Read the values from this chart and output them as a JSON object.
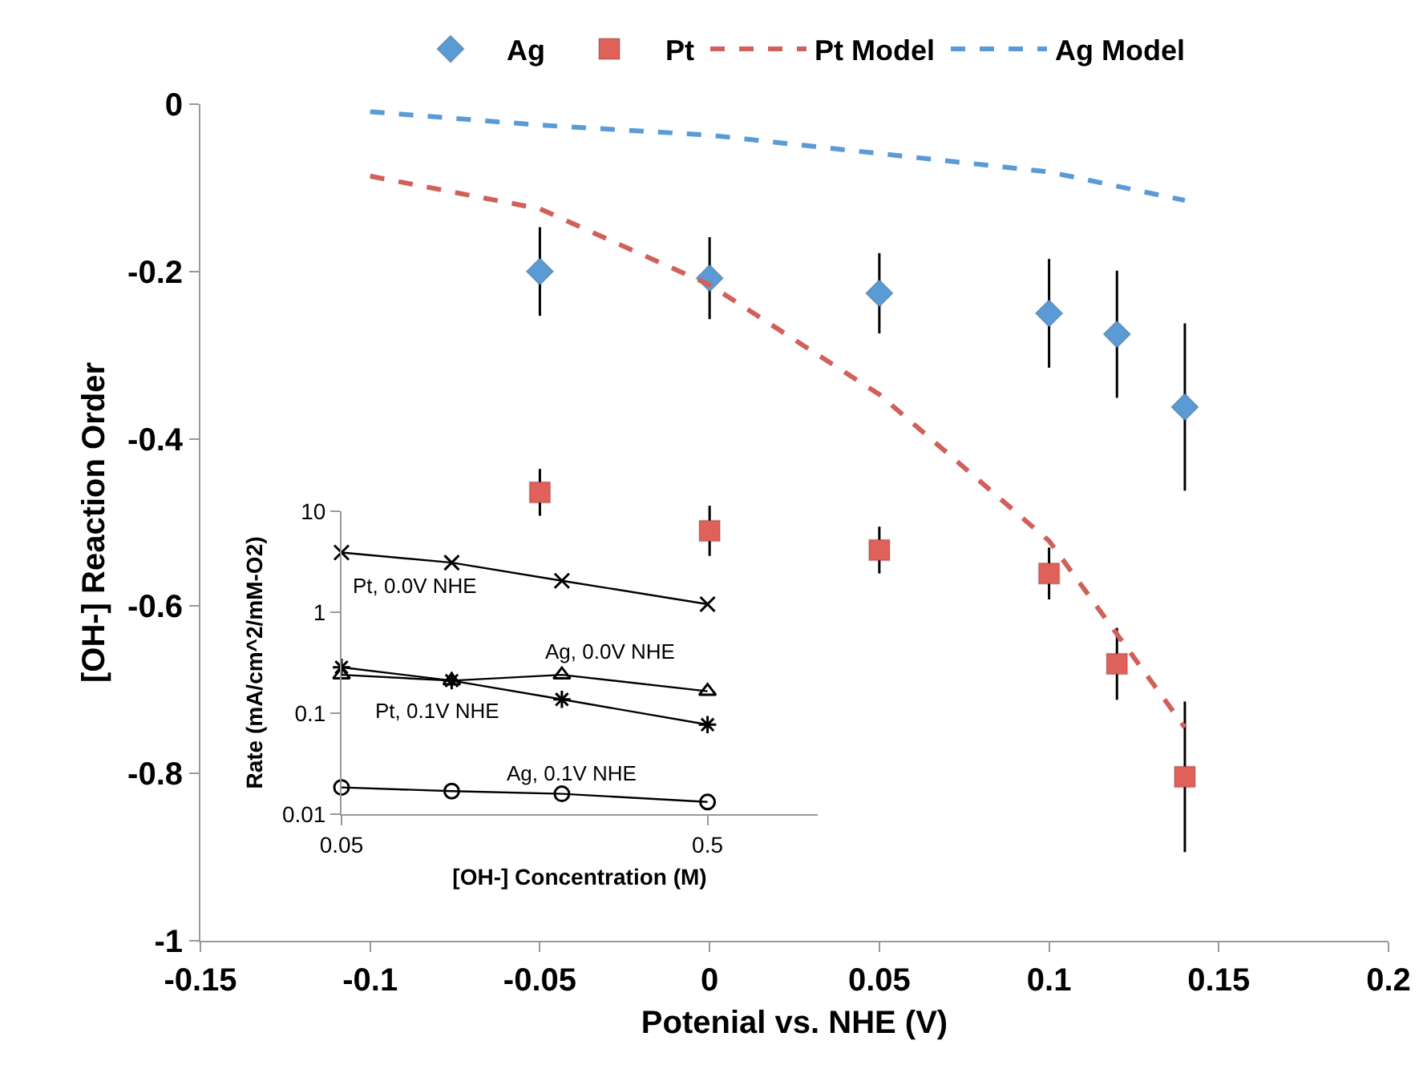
{
  "chart_data": [
    {
      "type": "scatter",
      "xlabel": "Potenial vs. NHE (V)",
      "ylabel": "[OH-] Reaction Order",
      "x": [
        -0.05,
        0,
        0.05,
        0.1,
        0.12,
        0.14
      ],
      "xlim": [
        -0.15,
        0.2
      ],
      "xticks": [
        -0.15,
        -0.1,
        -0.05,
        0,
        0.05,
        0.1,
        0.15,
        0.2
      ],
      "ylim": [
        -1,
        0
      ],
      "yticks": [
        -1,
        -0.8,
        -0.6,
        -0.4,
        -0.2,
        0
      ],
      "legend": "top",
      "series": [
        {
          "name": "Ag",
          "marker": "diamond",
          "color": "#5b9bd5",
          "values": [
            -0.2,
            -0.208,
            -0.226,
            -0.25,
            -0.275,
            -0.362
          ],
          "errors": [
            0.053,
            0.049,
            0.048,
            0.065,
            0.076,
            0.1
          ]
        },
        {
          "name": "Pt",
          "marker": "square",
          "color": "#e0605a",
          "values": [
            -0.464,
            -0.51,
            -0.533,
            -0.561,
            -0.669,
            -0.804
          ],
          "errors": [
            0.028,
            0.03,
            0.028,
            0.031,
            0.043,
            0.09
          ]
        },
        {
          "name": "Pt Model",
          "type": "line",
          "line_style": "dashed",
          "color": "#d0605a",
          "x": [
            -0.1,
            -0.05,
            0,
            0.05,
            0.1,
            0.14
          ],
          "values": [
            -0.086,
            -0.125,
            -0.216,
            -0.347,
            -0.522,
            -0.745
          ]
        },
        {
          "name": "Ag Model",
          "type": "line",
          "line_style": "dashed",
          "color": "#5b9bd5",
          "x": [
            -0.1,
            -0.05,
            0,
            0.05,
            0.1,
            0.14
          ],
          "values": [
            -0.009,
            -0.025,
            -0.037,
            -0.059,
            -0.081,
            -0.115
          ]
        }
      ]
    },
    {
      "type": "line",
      "xlabel": "[OH-] Concentration (M)",
      "ylabel": "Rate (mA/cm^2/mM-O2)",
      "x": [
        0.05,
        0.1,
        0.2,
        0.5
      ],
      "log": "xy",
      "xlim": [
        0.05,
        1
      ],
      "xticks": [
        0.05,
        0.5
      ],
      "ylim": [
        0.01,
        10
      ],
      "yticks": [
        0.01,
        0.1,
        1,
        10
      ],
      "series": [
        {
          "name": "Pt, 0.0V NHE",
          "marker": "cross",
          "color": "#000000",
          "values": [
            3.9,
            3.1,
            2.05,
            1.2
          ]
        },
        {
          "name": "Ag, 0.0V NHE",
          "marker": "triangle",
          "color": "#000000",
          "values": [
            0.24,
            0.21,
            0.24,
            0.165
          ]
        },
        {
          "name": "Pt, 0.1V NHE",
          "marker": "cross",
          "color": "#000000",
          "values": [
            0.285,
            0.21,
            0.137,
            0.077
          ]
        },
        {
          "name": "Ag, 0.1V NHE",
          "marker": "circle",
          "color": "#000000",
          "values": [
            0.0184,
            0.0169,
            0.0159,
            0.0132
          ]
        }
      ]
    }
  ]
}
